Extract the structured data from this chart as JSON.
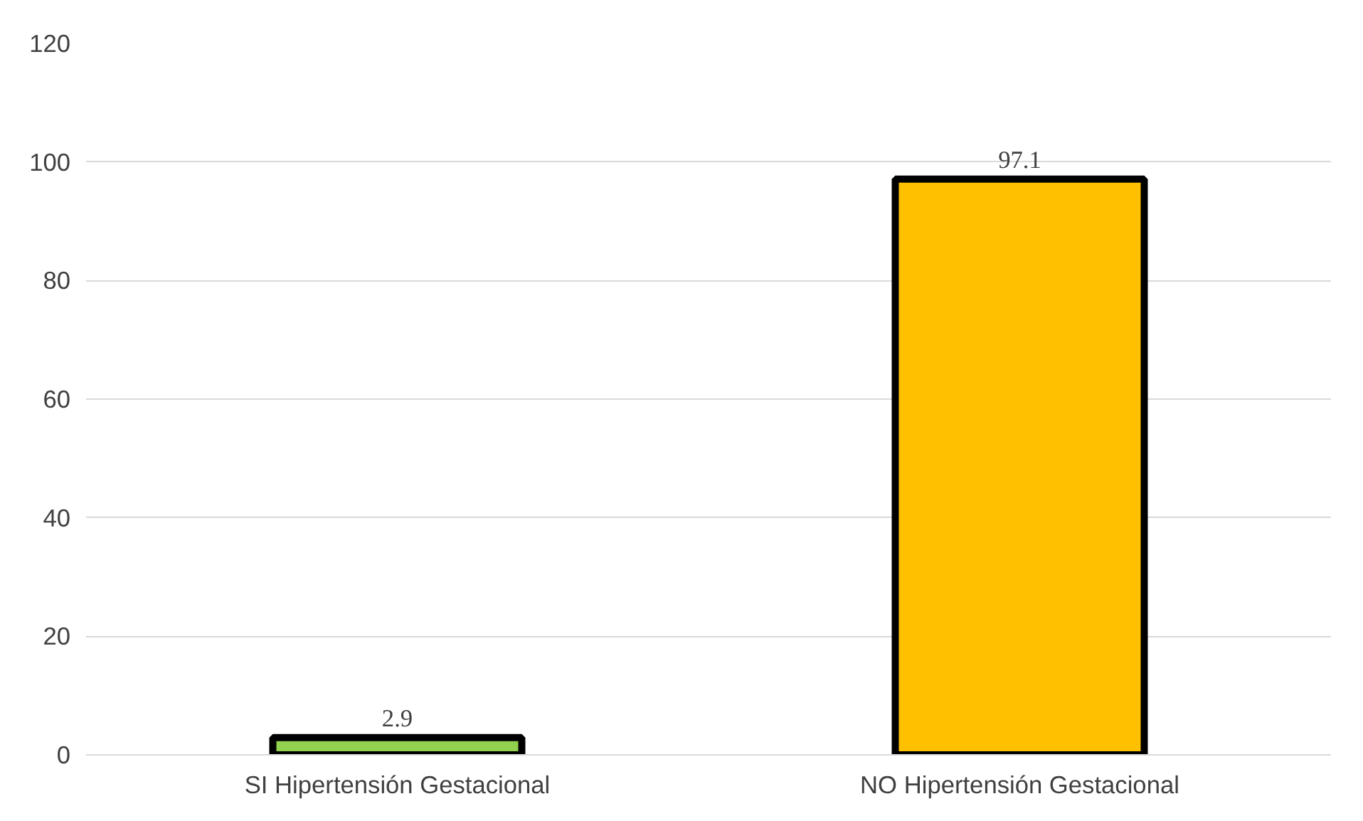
{
  "chart_data": {
    "type": "bar",
    "categories": [
      "SI Hipertensión Gestacional",
      "NO Hipertensión Gestacional"
    ],
    "values": [
      2.9,
      97.1
    ],
    "colors": [
      "#92d050",
      "#ffc000"
    ],
    "ylim": [
      0,
      120
    ],
    "yticks": [
      0,
      20,
      40,
      60,
      80,
      100,
      120
    ],
    "grid": "y",
    "data_labels": true
  }
}
